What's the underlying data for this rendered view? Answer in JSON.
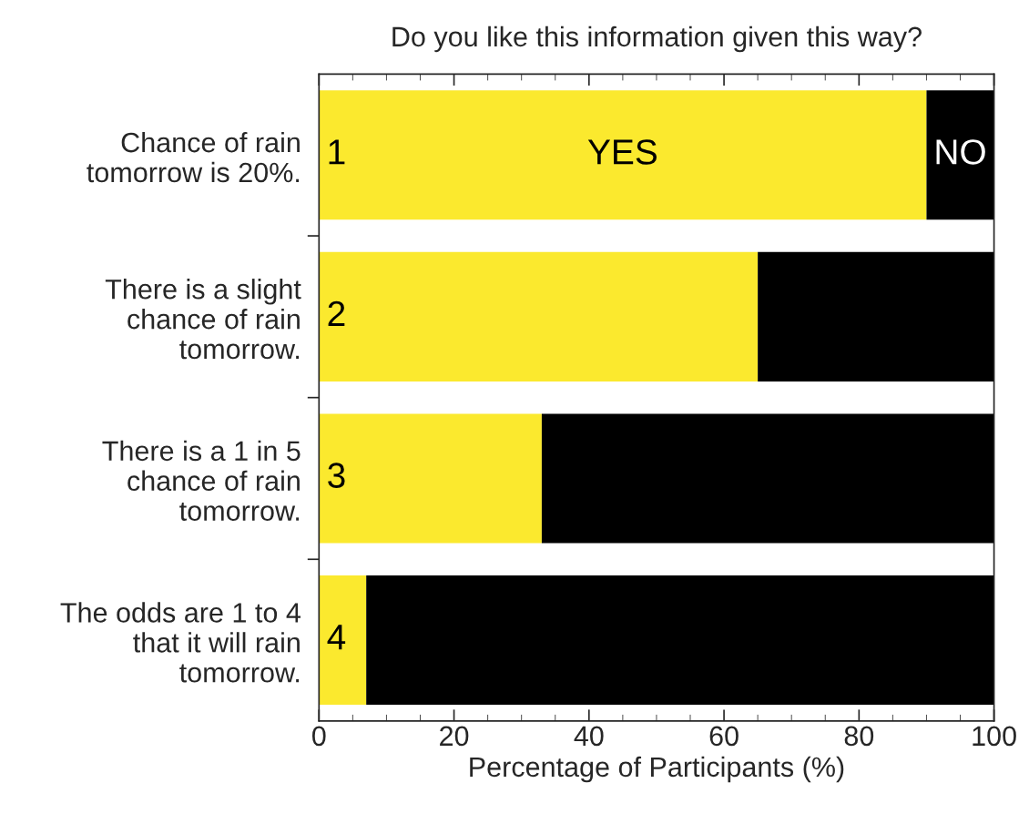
{
  "chart_data": {
    "type": "bar",
    "orientation": "horizontal",
    "stacked": true,
    "title": "Do you like this information given this way?",
    "xlabel": "Percentage of Participants (%)",
    "categories": [
      "Chance of rain\ntomorrow is 20%.",
      "There is a slight\nchance of rain\ntomorrow.",
      "There is a 1 in 5\nchance of rain\ntomorrow.",
      "The odds are 1 to 4\nthat it will rain\ntomorrow."
    ],
    "series": [
      {
        "name": "YES",
        "color": "#fbe92e",
        "values": [
          90,
          65,
          33,
          7
        ]
      },
      {
        "name": "NO",
        "color": "#000000",
        "values": [
          10,
          35,
          67,
          93
        ]
      }
    ],
    "annotations": [
      "1",
      "2",
      "3",
      "4"
    ],
    "xlim": [
      0,
      100
    ],
    "xticks": [
      0,
      20,
      40,
      60,
      80,
      100
    ],
    "grid": false,
    "legend": false
  }
}
